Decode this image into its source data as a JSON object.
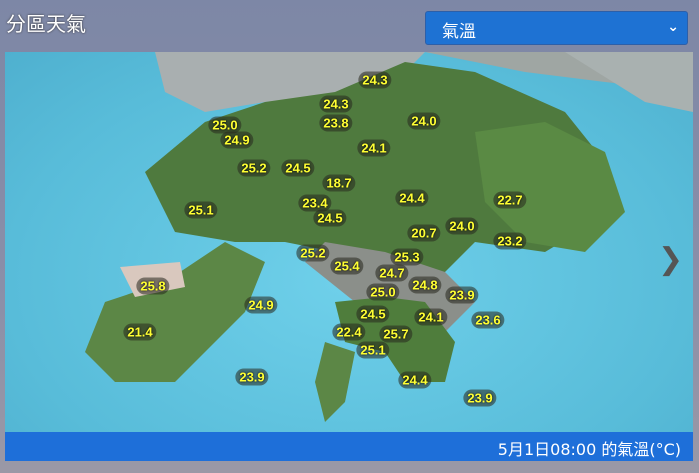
{
  "header": {
    "title": "分區天氣"
  },
  "selector": {
    "value": "氣溫",
    "icon": "chevron-down-icon"
  },
  "map": {
    "next_icon": "chevron-right-icon",
    "stations": [
      {
        "temp": "24.3"
      },
      {
        "temp": "24.3"
      },
      {
        "temp": "23.8"
      },
      {
        "temp": "24.0"
      },
      {
        "temp": "25.0"
      },
      {
        "temp": "24.9"
      },
      {
        "temp": "24.1"
      },
      {
        "temp": "25.2"
      },
      {
        "temp": "24.5"
      },
      {
        "temp": "18.7"
      },
      {
        "temp": "24.4"
      },
      {
        "temp": "22.7"
      },
      {
        "temp": "25.1"
      },
      {
        "temp": "23.4"
      },
      {
        "temp": "24.5"
      },
      {
        "temp": "20.7"
      },
      {
        "temp": "24.0"
      },
      {
        "temp": "23.2"
      },
      {
        "temp": "25.2"
      },
      {
        "temp": "25.3"
      },
      {
        "temp": "25.4"
      },
      {
        "temp": "24.7"
      },
      {
        "temp": "25.8"
      },
      {
        "temp": "24.8"
      },
      {
        "temp": "25.0"
      },
      {
        "temp": "23.9"
      },
      {
        "temp": "24.9"
      },
      {
        "temp": "24.5"
      },
      {
        "temp": "24.1"
      },
      {
        "temp": "23.6"
      },
      {
        "temp": "21.4"
      },
      {
        "temp": "22.4"
      },
      {
        "temp": "25.7"
      },
      {
        "temp": "25.1"
      },
      {
        "temp": "23.9"
      },
      {
        "temp": "24.4"
      },
      {
        "temp": "23.9"
      }
    ]
  },
  "footer": {
    "caption": "5月1日08:00 的氣溫(°C)"
  }
}
